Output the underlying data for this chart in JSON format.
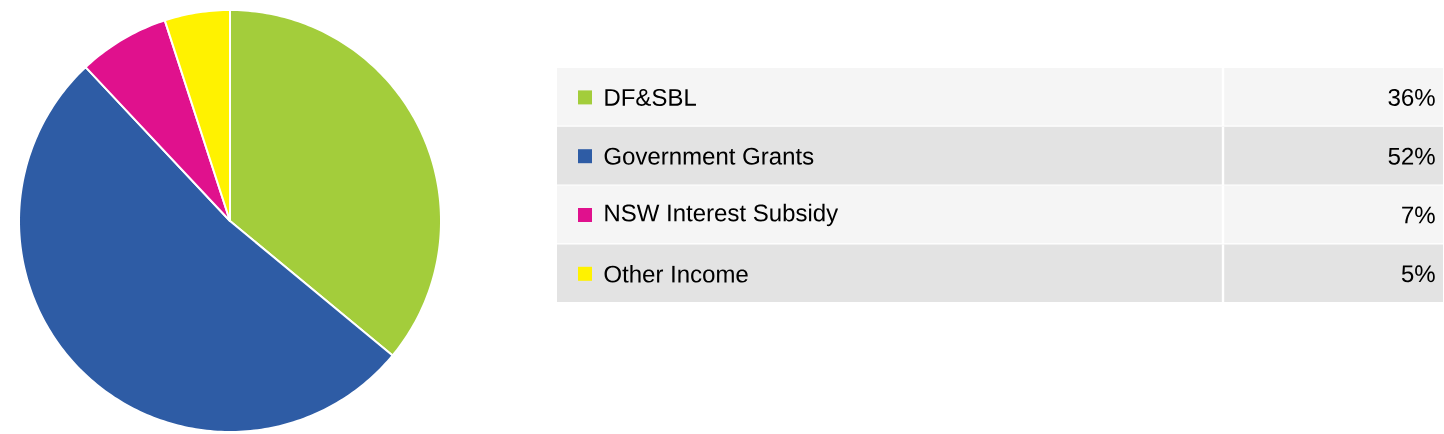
{
  "chart_data": {
    "type": "pie",
    "categories": [
      "DF&SBL",
      "Government Grants",
      "NSW Interest Subsidy",
      "Other Income"
    ],
    "values": [
      36,
      52,
      7,
      5
    ],
    "value_labels": [
      "36%",
      "52%",
      "7%",
      "5%"
    ],
    "colors": [
      "#a3cd3b",
      "#2e5ca5",
      "#e0118d",
      "#fff200"
    ],
    "legend": "right"
  }
}
